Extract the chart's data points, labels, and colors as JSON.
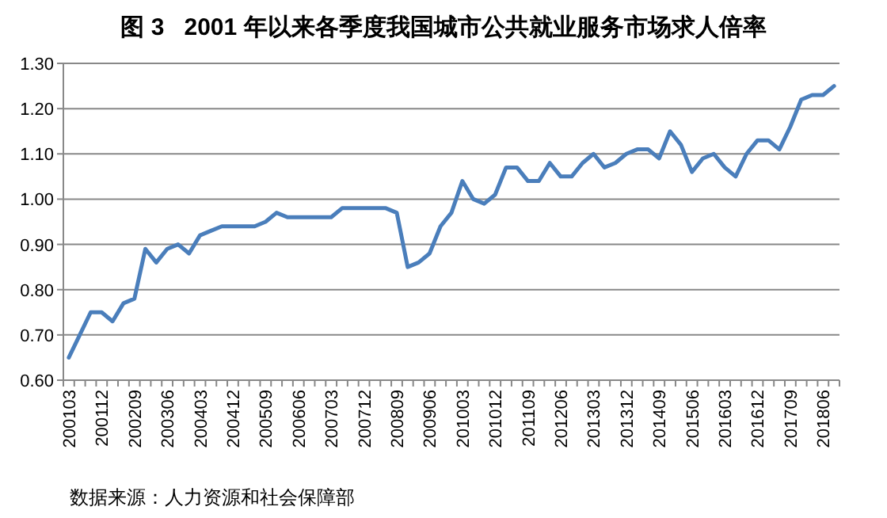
{
  "chart_data": {
    "type": "line",
    "title": "图 3   2001 年以来各季度我国城市公共就业服务市场求人倍率",
    "categories": [
      "200103",
      null,
      null,
      "200112",
      null,
      null,
      "200209",
      null,
      null,
      "200306",
      null,
      null,
      "200403",
      null,
      null,
      "200412",
      null,
      null,
      "200509",
      null,
      null,
      "200606",
      null,
      null,
      "200703",
      null,
      null,
      "200712",
      null,
      null,
      "200809",
      null,
      null,
      "200906",
      null,
      null,
      "201003",
      null,
      null,
      "201012",
      null,
      null,
      "201109",
      null,
      null,
      "201206",
      null,
      null,
      "201303",
      null,
      null,
      "201312",
      null,
      null,
      "201409",
      null,
      null,
      "201506",
      null,
      null,
      "201603",
      null,
      null,
      "201612",
      null,
      null,
      "201709",
      null,
      null,
      "201806",
      null
    ],
    "series": [
      {
        "color": "#4a7ebb",
        "values": [
          0.65,
          0.7,
          0.75,
          0.75,
          0.73,
          0.77,
          0.78,
          0.89,
          0.86,
          0.89,
          0.9,
          0.88,
          0.92,
          0.93,
          0.94,
          0.94,
          0.94,
          0.94,
          0.95,
          0.97,
          0.96,
          0.96,
          0.96,
          0.96,
          0.96,
          0.98,
          0.98,
          0.98,
          0.98,
          0.98,
          0.97,
          0.85,
          0.86,
          0.88,
          0.94,
          0.97,
          1.04,
          1.0,
          0.99,
          1.01,
          1.07,
          1.07,
          1.04,
          1.04,
          1.08,
          1.05,
          1.05,
          1.08,
          1.1,
          1.07,
          1.08,
          1.1,
          1.11,
          1.11,
          1.09,
          1.15,
          1.12,
          1.06,
          1.09,
          1.1,
          1.07,
          1.05,
          1.1,
          1.13,
          1.13,
          1.11,
          1.16,
          1.22,
          1.23,
          1.23,
          1.25
        ]
      }
    ],
    "ylim": [
      0.6,
      1.3
    ],
    "yticks": [
      {
        "value": 0.6,
        "label": "0.60"
      },
      {
        "value": 0.7,
        "label": "0.70"
      },
      {
        "value": 0.8,
        "label": "0.80"
      },
      {
        "value": 0.9,
        "label": "0.90"
      },
      {
        "value": 1.0,
        "label": "1.00"
      },
      {
        "value": 1.1,
        "label": "1.10"
      },
      {
        "value": 1.2,
        "label": "1.20"
      },
      {
        "value": 1.3,
        "label": "1.30"
      }
    ],
    "grid": "y",
    "marker": "none",
    "line_style": "solid",
    "annotations": [
      "数据来源：人力资源和社会保障部"
    ]
  }
}
